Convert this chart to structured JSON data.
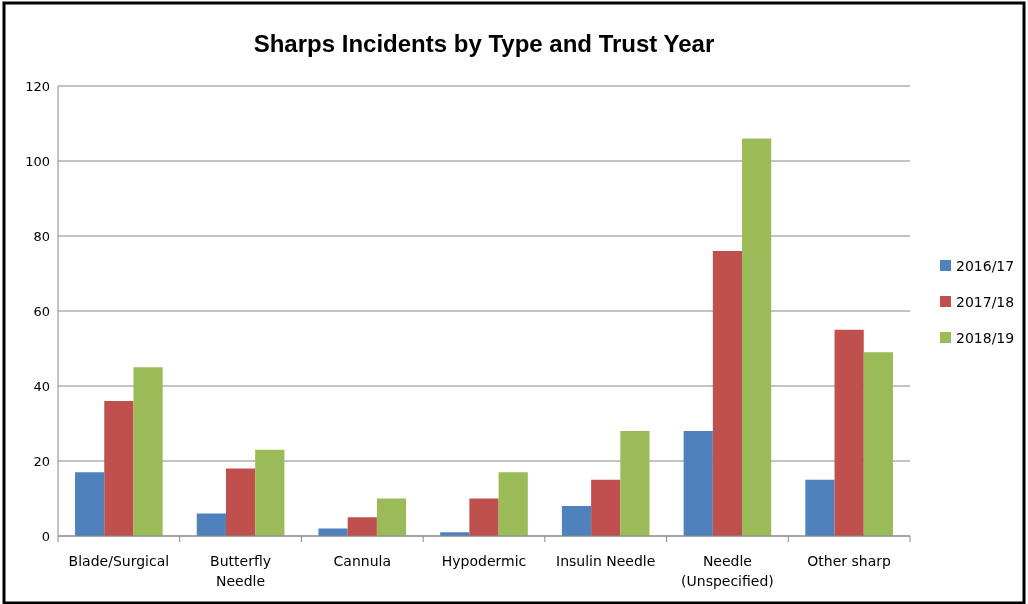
{
  "chart_data": {
    "type": "bar",
    "title": "Sharps Incidents by Type and Trust Year",
    "categories": [
      "Blade/Surgical",
      "Butterfly\nNeedle",
      "Cannula",
      "Hypodermic",
      "Insulin Needle",
      "Needle\n(Unspecified)",
      "Other sharp"
    ],
    "series": [
      {
        "name": "2016/17",
        "color": "#4f81bd",
        "values": [
          17,
          6,
          2,
          1,
          8,
          28,
          15
        ]
      },
      {
        "name": "2017/18",
        "color": "#c0504d",
        "values": [
          36,
          18,
          5,
          10,
          15,
          76,
          55
        ]
      },
      {
        "name": "2018/19",
        "color": "#9bbb59",
        "values": [
          45,
          23,
          10,
          17,
          28,
          106,
          49
        ]
      }
    ],
    "ylim": [
      0,
      120
    ],
    "yticks": [
      0,
      20,
      40,
      60,
      80,
      100,
      120
    ],
    "grid": "y",
    "legend": "right"
  }
}
